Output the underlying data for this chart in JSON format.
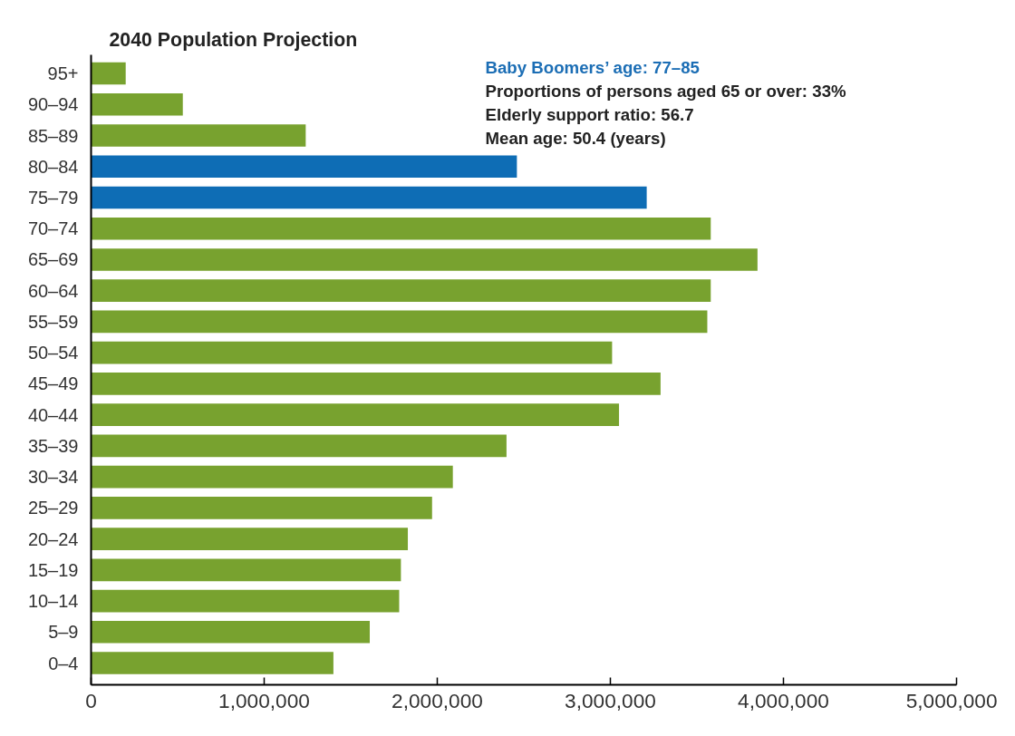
{
  "chart_data": {
    "type": "bar",
    "orientation": "horizontal",
    "title": "2040 Population Projection",
    "annotations": [
      "Baby Boomers’ age: 77–85",
      "Proportions of persons aged 65 or over: 33%",
      "Elderly support ratio: 56.7",
      "Mean age: 50.4 (years)"
    ],
    "categories": [
      "95+",
      "90–94",
      "85–89",
      "80–84",
      "75–79",
      "70–74",
      "65–69",
      "60–64",
      "55–59",
      "50–54",
      "45–49",
      "40–44",
      "35–39",
      "30–34",
      "25–29",
      "20–24",
      "15–19",
      "10–14",
      "5–9",
      "0–4"
    ],
    "values": [
      200000,
      530000,
      1240000,
      2460000,
      3210000,
      3580000,
      3850000,
      3580000,
      3560000,
      3010000,
      3290000,
      3050000,
      2400000,
      2090000,
      1970000,
      1830000,
      1790000,
      1780000,
      1610000,
      1400000
    ],
    "colors": [
      "#78a22f",
      "#78a22f",
      "#78a22f",
      "#0e6db5",
      "#0e6db5",
      "#78a22f",
      "#78a22f",
      "#78a22f",
      "#78a22f",
      "#78a22f",
      "#78a22f",
      "#78a22f",
      "#78a22f",
      "#78a22f",
      "#78a22f",
      "#78a22f",
      "#78a22f",
      "#78a22f",
      "#78a22f",
      "#78a22f"
    ],
    "xlim": [
      0,
      5000000
    ],
    "xticks": [
      0,
      {
        "value": 1000000,
        "label": "1,000,000"
      },
      {
        "value": 2000000,
        "label": "2,000,000"
      },
      {
        "value": 3000000,
        "label": "3,000,000"
      },
      {
        "value": 4000000,
        "label": "4,000,000"
      },
      {
        "value": 5000000,
        "label": "5,000,000"
      }
    ],
    "grid": false
  }
}
